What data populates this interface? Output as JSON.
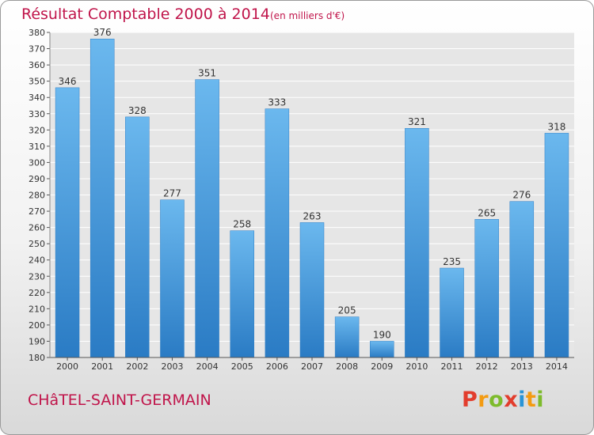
{
  "header": {
    "title": "Résultat Comptable 2000 à 2014",
    "subtitle": "(en milliers d'€)"
  },
  "footer": {
    "town": "CHâTEL-SAINT-GERMAIN",
    "brand": "Proxiti"
  },
  "colors": {
    "bar_light": "#6bb8ee",
    "bar_dark": "#2a7bc4",
    "title": "#c0144a"
  },
  "chart_data": {
    "type": "bar",
    "title": "Résultat Comptable 2000 à 2014",
    "subtitle": "(en milliers d'€)",
    "categories": [
      "2000",
      "2001",
      "2002",
      "2003",
      "2004",
      "2005",
      "2006",
      "2007",
      "2008",
      "2009",
      "2010",
      "2011",
      "2012",
      "2013",
      "2014"
    ],
    "values": [
      346,
      376,
      328,
      277,
      351,
      258,
      333,
      263,
      205,
      190,
      321,
      235,
      265,
      276,
      318
    ],
    "ylim": [
      180,
      380
    ],
    "yticks": [
      180,
      190,
      200,
      210,
      220,
      230,
      240,
      250,
      260,
      270,
      280,
      290,
      300,
      310,
      320,
      330,
      340,
      350,
      360,
      370,
      380
    ],
    "grid": true,
    "xlabel": "",
    "ylabel": ""
  }
}
